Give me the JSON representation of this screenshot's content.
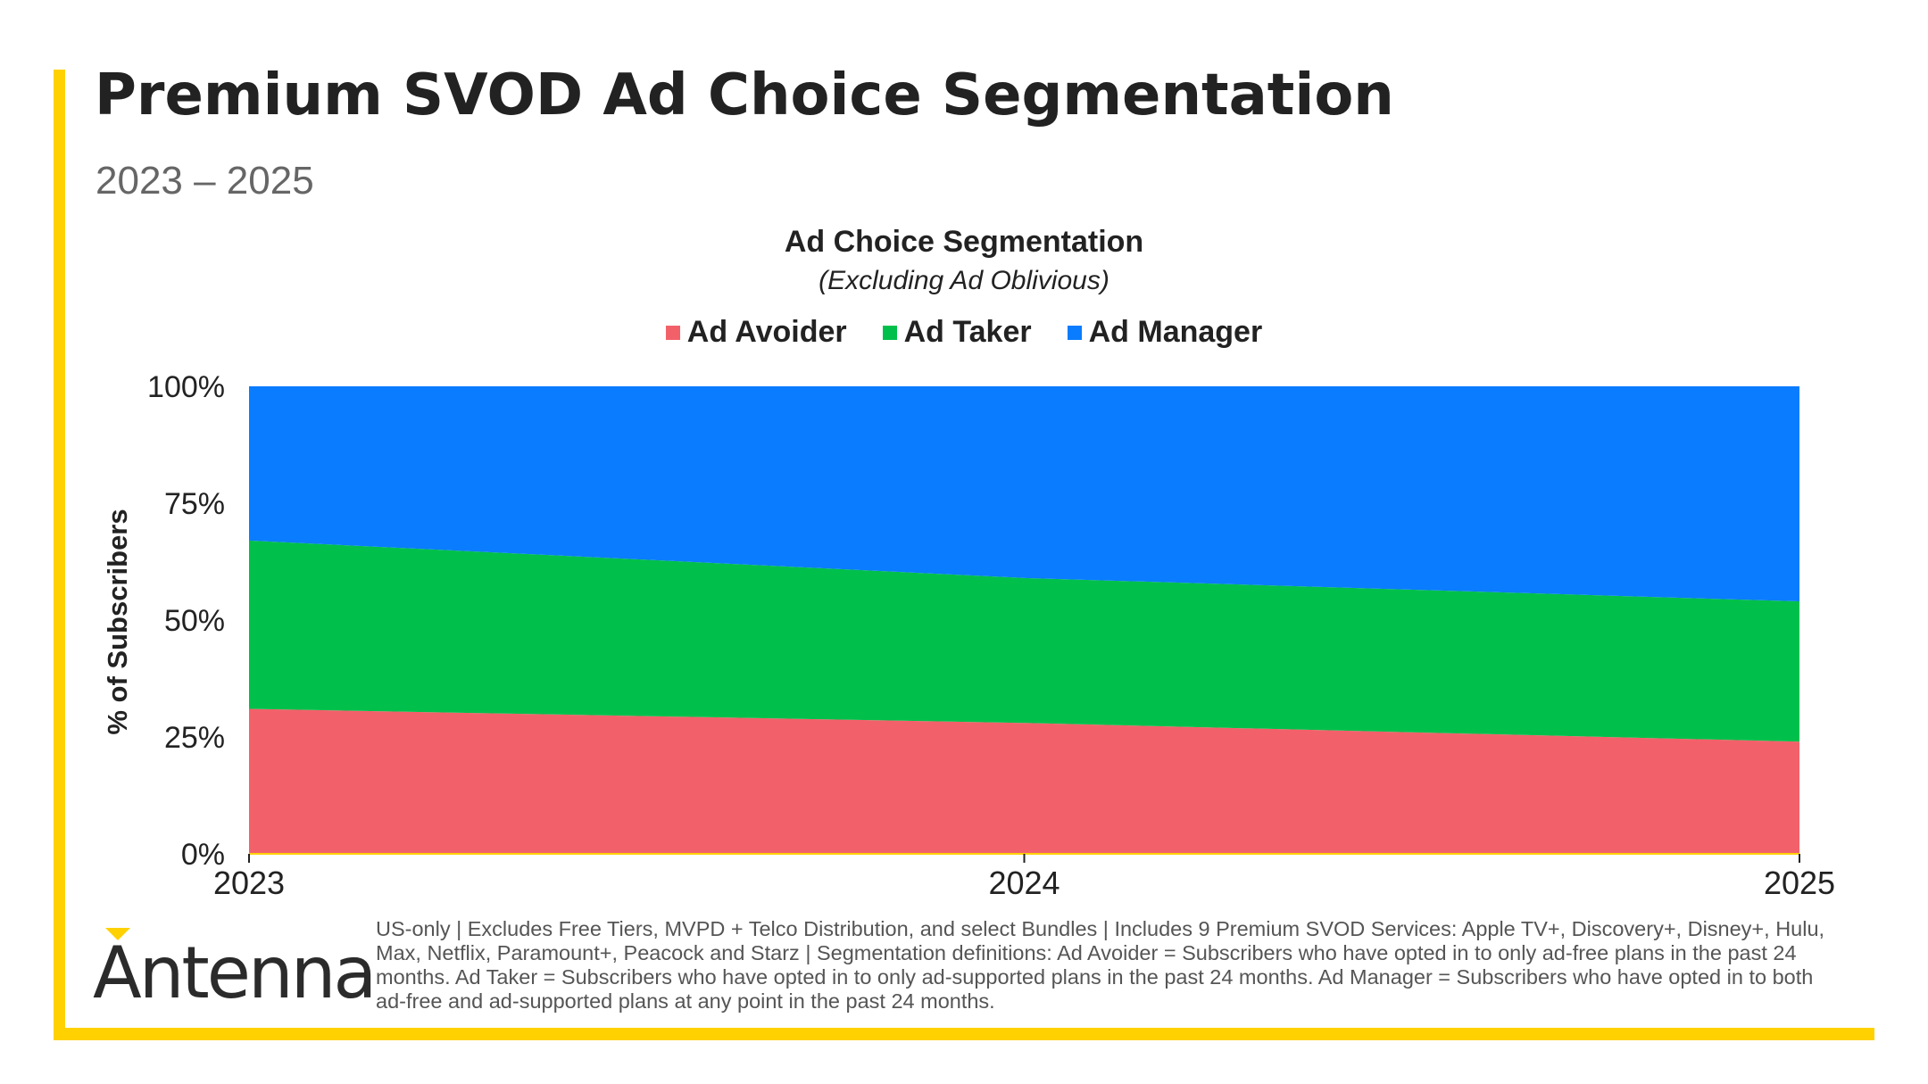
{
  "header": {
    "title": "Premium SVOD Ad Choice Segmentation",
    "subtitle": "2023 – 2025"
  },
  "chart_data": {
    "type": "area",
    "stacked": true,
    "title": "Ad Choice Segmentation",
    "subtitle": "(Excluding Ad Oblivious)",
    "ylabel": "% of Subscribers",
    "x": [
      "2023",
      "2024",
      "2025"
    ],
    "ylim": [
      0,
      100
    ],
    "yticks": [
      "0%",
      "25%",
      "50%",
      "75%",
      "100%"
    ],
    "grid": false,
    "legend": "top-center",
    "series": [
      {
        "name": "Ad Avoider",
        "color": "#F2616A",
        "values": [
          31,
          28,
          24
        ]
      },
      {
        "name": "Ad Taker",
        "color": "#00C04B",
        "values": [
          36,
          31,
          30
        ]
      },
      {
        "name": "Ad Manager",
        "color": "#0A7CFF",
        "values": [
          33,
          41,
          46
        ]
      }
    ]
  },
  "footer": {
    "logo": "Antenna",
    "logo_accent_color": "#FFD100",
    "note": "US-only | Excludes Free Tiers, MVPD + Telco Distribution, and select Bundles | Includes 9 Premium SVOD Services: Apple TV+, Discovery+, Disney+, Hulu, Max, Netflix, Paramount+, Peacock and Starz | Segmentation definitions: Ad Avoider = Subscribers who have opted in to only ad-free plans in the past 24 months. Ad Taker = Subscribers who have opted in to only ad-supported plans in the past 24 months. Ad Manager = Subscribers who have opted in to both ad-free and ad-supported plans at any point in the past 24 months."
  }
}
